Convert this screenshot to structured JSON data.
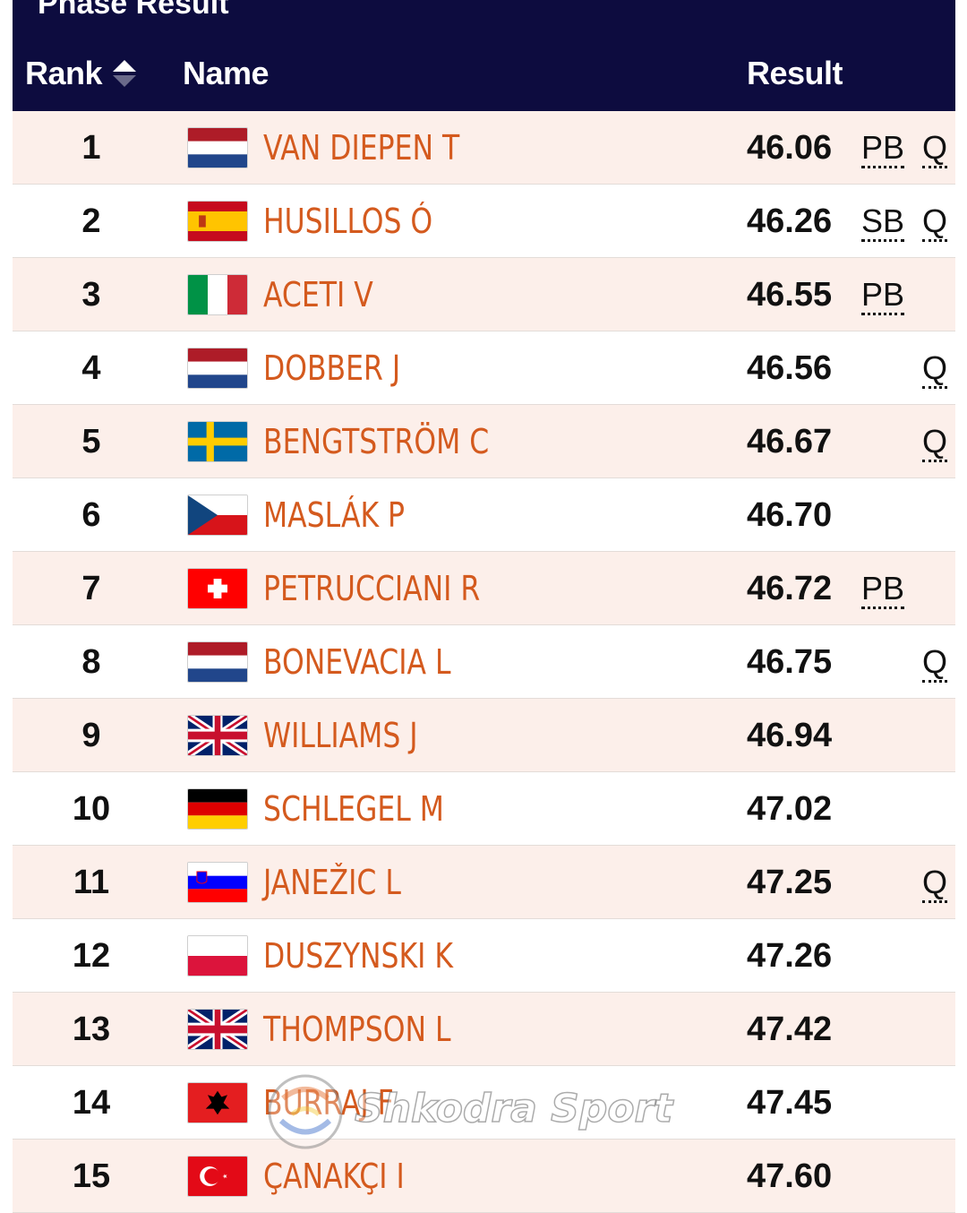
{
  "header": {
    "title": "Phase Result",
    "col_rank": "Rank",
    "col_name": "Name",
    "col_result": "Result"
  },
  "colors": {
    "header_bg": "#0d0c3f",
    "name_text": "#d45a1e",
    "row_alt": "#fcefea"
  },
  "rows": [
    {
      "rank": "1",
      "flag": "netherlands-flag-icon",
      "name": "VAN DIEPEN T",
      "result": "46.06",
      "mark": "PB",
      "q": "Q"
    },
    {
      "rank": "2",
      "flag": "spain-flag-icon",
      "name": "HUSILLOS Ó",
      "result": "46.26",
      "mark": "SB",
      "q": "Q"
    },
    {
      "rank": "3",
      "flag": "italy-flag-icon",
      "name": "ACETI V",
      "result": "46.55",
      "mark": "PB",
      "q": ""
    },
    {
      "rank": "4",
      "flag": "netherlands-flag-icon",
      "name": "DOBBER J",
      "result": "46.56",
      "mark": "",
      "q": "Q"
    },
    {
      "rank": "5",
      "flag": "sweden-flag-icon",
      "name": "BENGTSTRÖM C",
      "result": "46.67",
      "mark": "",
      "q": "Q"
    },
    {
      "rank": "6",
      "flag": "czechia-flag-icon",
      "name": "MASLÁK P",
      "result": "46.70",
      "mark": "",
      "q": ""
    },
    {
      "rank": "7",
      "flag": "switzerland-flag-icon",
      "name": "PETRUCCIANI R",
      "result": "46.72",
      "mark": "PB",
      "q": ""
    },
    {
      "rank": "8",
      "flag": "netherlands-flag-icon",
      "name": "BONEVACIA L",
      "result": "46.75",
      "mark": "",
      "q": "Q"
    },
    {
      "rank": "9",
      "flag": "united-kingdom-flag-icon",
      "name": "WILLIAMS J",
      "result": "46.94",
      "mark": "",
      "q": ""
    },
    {
      "rank": "10",
      "flag": "germany-flag-icon",
      "name": "SCHLEGEL M",
      "result": "47.02",
      "mark": "",
      "q": ""
    },
    {
      "rank": "11",
      "flag": "slovenia-flag-icon",
      "name": "JANEŽIC L",
      "result": "47.25",
      "mark": "",
      "q": "Q"
    },
    {
      "rank": "12",
      "flag": "poland-flag-icon",
      "name": "DUSZYNSKI K",
      "result": "47.26",
      "mark": "",
      "q": ""
    },
    {
      "rank": "13",
      "flag": "united-kingdom-flag-icon",
      "name": "THOMPSON L",
      "result": "47.42",
      "mark": "",
      "q": ""
    },
    {
      "rank": "14",
      "flag": "albania-flag-icon",
      "name": "BURRAJ F",
      "result": "47.45",
      "mark": "",
      "q": ""
    },
    {
      "rank": "15",
      "flag": "turkey-flag-icon",
      "name": "ÇANAKÇI I",
      "result": "47.60",
      "mark": "",
      "q": ""
    }
  ],
  "watermark": {
    "text": "Shkodra Sport",
    "icon": "ball-logo-icon"
  }
}
